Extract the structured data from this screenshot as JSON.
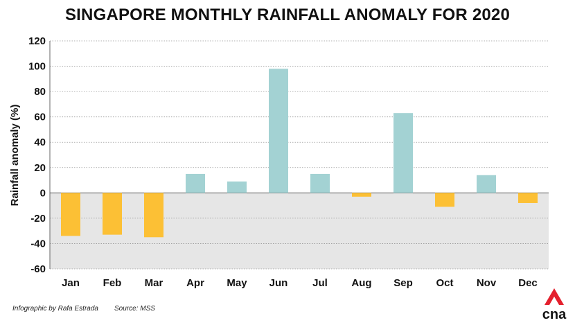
{
  "title": "SINGAPORE MONTHLY RAINFALL ANOMALY FOR 2020",
  "footer": {
    "credit": "Infographic by Rafa Estrada",
    "source": "Source: MSS"
  },
  "logo": {
    "text": "cna"
  },
  "colors": {
    "positive": "#a3d2d3",
    "negative": "#fcc035",
    "negative_zone": "#e6e6e6",
    "grid": "#999999",
    "logo_red": "#e4202d"
  },
  "chart_data": {
    "type": "bar",
    "title": "SINGAPORE MONTHLY RAINFALL ANOMALY FOR 2020",
    "xlabel": "",
    "ylabel": "Rainfall anomaly (%)",
    "ylim": [
      -60,
      120
    ],
    "yticks": [
      120,
      100,
      80,
      60,
      40,
      20,
      0,
      -20,
      -40,
      -60
    ],
    "grid": true,
    "categories": [
      "Jan",
      "Feb",
      "Mar",
      "Apr",
      "May",
      "Jun",
      "Jul",
      "Aug",
      "Sep",
      "Oct",
      "Nov",
      "Dec"
    ],
    "values": [
      -34,
      -33,
      -35,
      15,
      9,
      98,
      15,
      -3,
      63,
      -11,
      14,
      -8
    ]
  }
}
